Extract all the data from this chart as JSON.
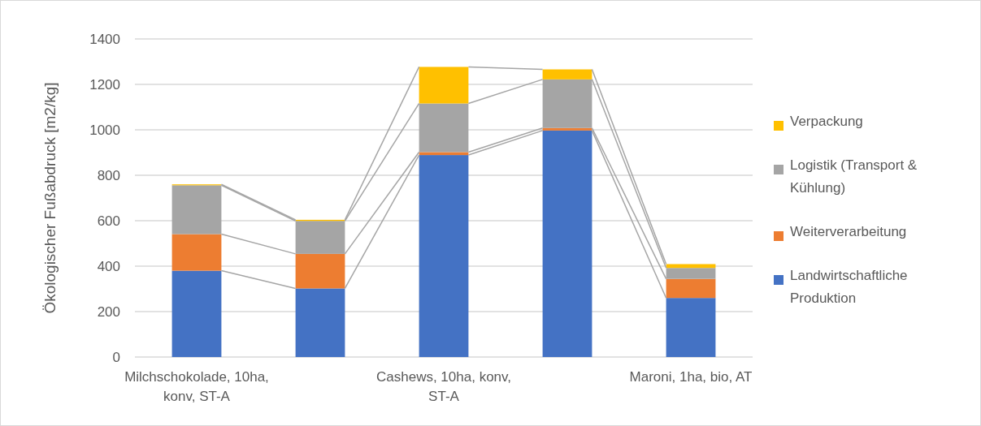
{
  "chart_data": {
    "type": "bar",
    "stacked": true,
    "ylabel": "Ökologischer Fußabdruck [m2/kg]",
    "categories": [
      "Milchschokolade, 10ha, konv, ST-A",
      null,
      "Cashews, 10ha, konv, ST-A",
      null,
      "Maroni, 1ha, bio, AT"
    ],
    "series": [
      {
        "name": "Landwirtschaftliche Produktion",
        "color": "#4472c4",
        "values": [
          380,
          302,
          889,
          997,
          260
        ]
      },
      {
        "name": "Weiterverarbeitung",
        "color": "#ed7d31",
        "values": [
          161,
          152,
          13,
          11,
          84
        ]
      },
      {
        "name": "Logistik (Transport & Kühlung)",
        "color": "#a5a5a5",
        "values": [
          215,
          145,
          214,
          214,
          48
        ]
      },
      {
        "name": "Verpackung",
        "color": "#ffc000",
        "values": [
          4,
          5,
          161,
          44,
          17
        ]
      }
    ],
    "ylim": [
      0,
      1400
    ],
    "yticks": [
      0,
      200,
      400,
      600,
      800,
      1000,
      1200,
      1400
    ],
    "grid": "y",
    "legend": "right"
  }
}
